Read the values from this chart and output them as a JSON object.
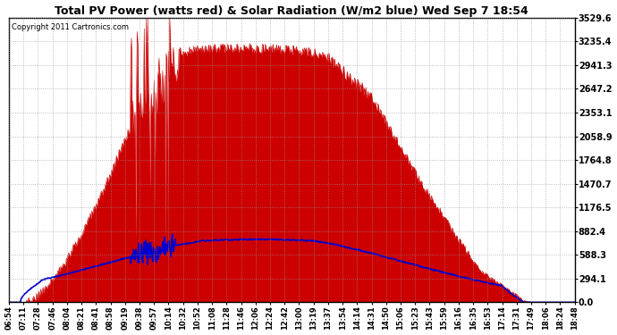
{
  "title": "Total PV Power (watts red) & Solar Radiation (W/m2 blue) Wed Sep 7 18:54",
  "copyright": "Copyright 2011 Cartronics.com",
  "ymax": 3529.6,
  "yticks": [
    0.0,
    294.1,
    588.3,
    882.4,
    1176.5,
    1470.7,
    1764.8,
    2058.9,
    2353.1,
    2647.2,
    2941.3,
    3235.4,
    3529.6
  ],
  "background_color": "#ffffff",
  "plot_bg_color": "#ffffff",
  "grid_color": "#999999",
  "red_color": "#cc0000",
  "blue_color": "#0000cc",
  "xtick_labels": [
    "06:54",
    "07:11",
    "07:28",
    "07:46",
    "08:04",
    "08:21",
    "08:41",
    "08:58",
    "09:19",
    "09:38",
    "09:57",
    "10:14",
    "10:32",
    "10:52",
    "11:08",
    "11:28",
    "11:46",
    "12:06",
    "12:24",
    "12:42",
    "13:00",
    "13:19",
    "13:37",
    "13:54",
    "14:14",
    "14:31",
    "14:50",
    "15:06",
    "15:23",
    "15:43",
    "15:59",
    "16:16",
    "16:35",
    "16:53",
    "17:14",
    "17:31",
    "17:49",
    "18:06",
    "18:24",
    "18:48"
  ],
  "n_points": 800,
  "pv_plateau": 3150,
  "sol_peak": 820,
  "figwidth": 6.9,
  "figheight": 3.75,
  "dpi": 100
}
